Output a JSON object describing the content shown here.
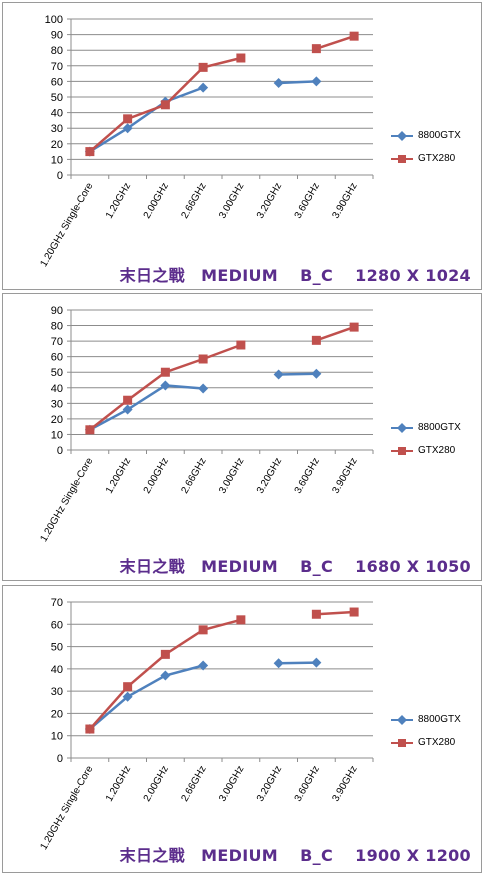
{
  "charts": [
    {
      "caption": "末日之戰　MEDIUM　 B_C　 1280 X 1024"
    },
    {
      "caption": "末日之戰　MEDIUM　 B_C　 1680 X 1050"
    },
    {
      "caption": "末日之戰　MEDIUM　 B_C　 1900 X 1200"
    }
  ],
  "chart_data": [
    {
      "type": "line",
      "categories": [
        "1.20GHz Single-Core",
        "1.20GHz",
        "2.00GHz",
        "2.66GHz",
        "3.00GHz",
        "3.20GHz",
        "3.60GHz",
        "3.90GHz"
      ],
      "ylim": [
        0,
        100
      ],
      "yticks": [
        0,
        10,
        20,
        30,
        40,
        50,
        60,
        70,
        80,
        90,
        100
      ],
      "legend_position": "right",
      "series": [
        {
          "name": "8800GTX",
          "color": "#4f81bd",
          "marker": "diamond",
          "values": [
            15,
            30,
            47,
            56,
            null,
            59,
            60,
            null
          ]
        },
        {
          "name": "GTX280",
          "color": "#c0504d",
          "marker": "square",
          "values": [
            15,
            36,
            45,
            69,
            75,
            null,
            81,
            89
          ]
        }
      ]
    },
    {
      "type": "line",
      "categories": [
        "1.20GHz Single-Core",
        "1.20GHz",
        "2.00GHz",
        "2.66GHz",
        "3.00GHz",
        "3.20GHz",
        "3.60GHz",
        "3.90GHz"
      ],
      "ylim": [
        0,
        90
      ],
      "yticks": [
        0,
        10,
        20,
        30,
        40,
        50,
        60,
        70,
        80,
        90
      ],
      "legend_position": "right",
      "series": [
        {
          "name": "8800GTX",
          "color": "#4f81bd",
          "marker": "diamond",
          "values": [
            13,
            26,
            41.5,
            39.5,
            null,
            48.5,
            49,
            null
          ]
        },
        {
          "name": "GTX280",
          "color": "#c0504d",
          "marker": "square",
          "values": [
            13,
            32,
            50,
            58.5,
            67.5,
            null,
            70.5,
            79
          ]
        }
      ]
    },
    {
      "type": "line",
      "categories": [
        "1.20GHz Single-Core",
        "1.20GHz",
        "2.00GHz",
        "2.66GHz",
        "3.00GHz",
        "3.20GHz",
        "3.60GHz",
        "3.90GHz"
      ],
      "ylim": [
        0,
        70
      ],
      "yticks": [
        0,
        10,
        20,
        30,
        40,
        50,
        60,
        70
      ],
      "legend_position": "right",
      "series": [
        {
          "name": "8800GTX",
          "color": "#4f81bd",
          "marker": "diamond",
          "values": [
            13,
            27.5,
            37,
            41.5,
            null,
            42.5,
            42.8,
            null
          ]
        },
        {
          "name": "GTX280",
          "color": "#c0504d",
          "marker": "square",
          "values": [
            13,
            32,
            46.5,
            57.5,
            62,
            null,
            64.5,
            65.5
          ]
        }
      ]
    }
  ]
}
